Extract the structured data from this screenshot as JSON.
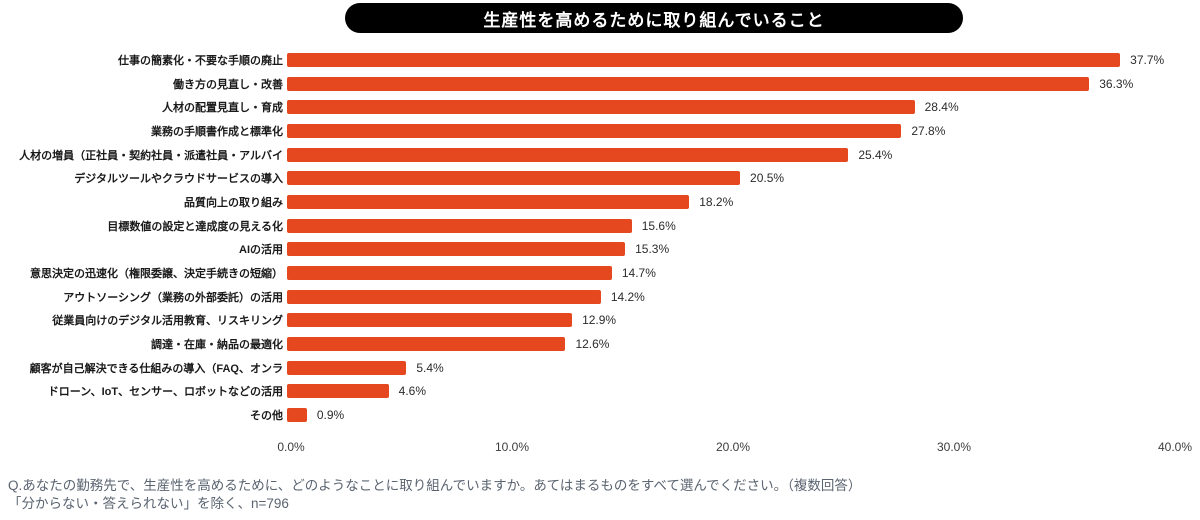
{
  "chart_data": {
    "type": "bar",
    "orientation": "horizontal",
    "title": "生産性を高めるために取り組んでいること",
    "categories": [
      "仕事の簡素化・不要な手順の廃止",
      "働き方の見直し・改善",
      "人材の配置見直し・育成",
      "業務の手順書作成と標準化",
      "人材の増員（正社員・契約社員・派遣社員・アルバイ",
      "デジタルツールやクラウドサービスの導入",
      "品質向上の取り組み",
      "目標数値の設定と達成度の見える化",
      "AIの活用",
      "意思決定の迅速化（権限委譲、決定手続きの短縮）",
      "アウトソーシング（業務の外部委託）の活用",
      "従業員向けのデジタル活用教育、リスキリング",
      "調達・在庫・納品の最適化",
      "顧客が自己解決できる仕組みの導入（FAQ、オンラ",
      "ドローン、IoT、センサー、ロボットなどの活用",
      "その他"
    ],
    "values": [
      37.7,
      36.3,
      28.4,
      27.8,
      25.4,
      20.5,
      18.2,
      15.6,
      15.3,
      14.7,
      14.2,
      12.9,
      12.6,
      5.4,
      4.6,
      0.9
    ],
    "value_labels": [
      "37.7%",
      "36.3%",
      "28.4%",
      "27.8%",
      "25.4%",
      "20.5%",
      "18.2%",
      "15.6%",
      "15.3%",
      "14.7%",
      "14.2%",
      "12.9%",
      "12.6%",
      "5.4%",
      "4.6%",
      "0.9%"
    ],
    "xlabel": "",
    "ylabel": "",
    "xlim": [
      0,
      40
    ],
    "x_ticks": [
      "0.0%",
      "10.0%",
      "20.0%",
      "30.0%",
      "40.0%"
    ],
    "x_tick_values": [
      0,
      10,
      20,
      30,
      40
    ],
    "grid": false,
    "legend_position": "none",
    "bar_color": "#E5481F",
    "title_bg_color": "#000000",
    "title_text_color": "#ffffff"
  },
  "footer": {
    "line1": "Q.あなたの勤務先で、生産性を高めるために、どのようなことに取り組んでいますか。あてはまるものをすべて選んでください。（複数回答）",
    "line2": "「分からない・答えられない」を除く、n=796"
  }
}
